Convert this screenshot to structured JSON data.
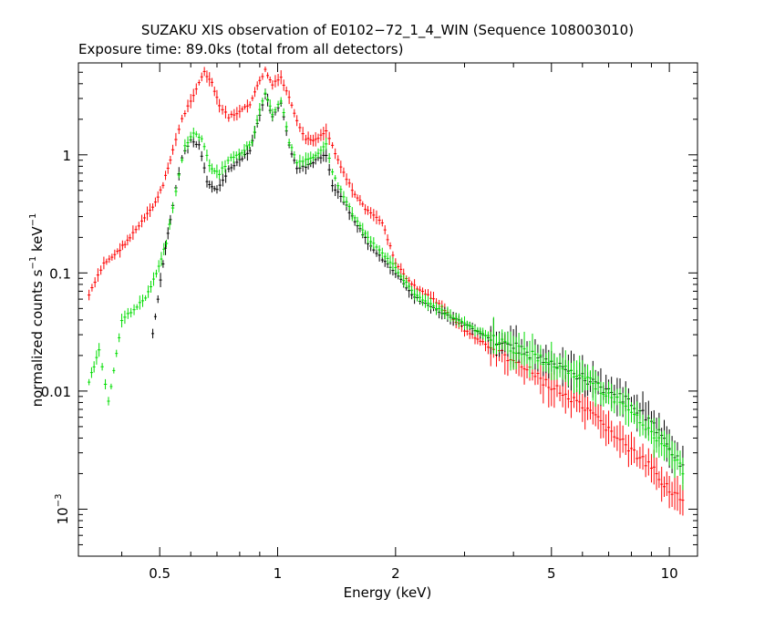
{
  "chart_data": {
    "type": "scatter",
    "title": "SUZAKU XIS observation of E0102−72_1_4_WIN (Sequence 108003010)",
    "subtitle": "Exposure time: 89.0ks (total from all detectors)",
    "xlabel": "Energy (keV)",
    "ylabel": "normalized counts s",
    "ylabel_sup1": "−1",
    "ylabel_mid": " keV",
    "ylabel_sup2": "−1",
    "x_scale": "log",
    "y_scale": "log",
    "xlim": [
      0.31,
      11.8
    ],
    "ylim": [
      0.0004,
      6
    ],
    "x_ticks": [
      {
        "value": 0.5,
        "label": "0.5"
      },
      {
        "value": 1,
        "label": "1"
      },
      {
        "value": 2,
        "label": "2"
      },
      {
        "value": 5,
        "label": "5"
      },
      {
        "value": 10,
        "label": "10"
      }
    ],
    "y_ticks": [
      {
        "value": 1,
        "label": "1"
      },
      {
        "value": 0.1,
        "label": "0.1"
      },
      {
        "value": 0.01,
        "label": "0.01"
      },
      {
        "value": 0.001,
        "label": "10",
        "sup": "−3"
      }
    ],
    "grid": false,
    "legend": "none",
    "series": [
      {
        "color": "#ff0000",
        "points": [
          [
            0.33,
            0.065
          ],
          [
            0.36,
            0.12
          ],
          [
            0.39,
            0.15
          ],
          [
            0.42,
            0.2
          ],
          [
            0.45,
            0.27
          ],
          [
            0.48,
            0.36
          ],
          [
            0.51,
            0.55
          ],
          [
            0.54,
            1.1
          ],
          [
            0.57,
            2.0
          ],
          [
            0.6,
            2.9
          ],
          [
            0.63,
            4.1
          ],
          [
            0.65,
            5.0
          ],
          [
            0.68,
            4.0
          ],
          [
            0.71,
            2.6
          ],
          [
            0.75,
            2.1
          ],
          [
            0.8,
            2.3
          ],
          [
            0.85,
            2.7
          ],
          [
            0.9,
            4.2
          ],
          [
            0.93,
            5.2
          ],
          [
            0.97,
            3.9
          ],
          [
            1.02,
            4.5
          ],
          [
            1.07,
            3.0
          ],
          [
            1.12,
            1.9
          ],
          [
            1.18,
            1.35
          ],
          [
            1.25,
            1.35
          ],
          [
            1.33,
            1.6
          ],
          [
            1.38,
            1.2
          ],
          [
            1.45,
            0.8
          ],
          [
            1.55,
            0.5
          ],
          [
            1.7,
            0.33
          ],
          [
            1.85,
            0.27
          ],
          [
            2.0,
            0.12
          ],
          [
            2.2,
            0.08
          ],
          [
            2.5,
            0.06
          ],
          [
            3.0,
            0.033
          ],
          [
            3.5,
            0.023
          ],
          [
            4.0,
            0.018
          ],
          [
            5.0,
            0.011
          ],
          [
            6.0,
            0.0072
          ],
          [
            7.0,
            0.0048
          ],
          [
            8.0,
            0.0031
          ],
          [
            9.0,
            0.0022
          ],
          [
            10.0,
            0.0015
          ],
          [
            11.0,
            0.0011
          ]
        ]
      },
      {
        "color": "#000000",
        "points": [
          [
            0.48,
            0.03
          ],
          [
            0.51,
            0.12
          ],
          [
            0.54,
            0.38
          ],
          [
            0.57,
            0.95
          ],
          [
            0.6,
            1.3
          ],
          [
            0.63,
            1.2
          ],
          [
            0.66,
            0.6
          ],
          [
            0.7,
            0.5
          ],
          [
            0.75,
            0.75
          ],
          [
            0.8,
            0.9
          ],
          [
            0.85,
            1.1
          ],
          [
            0.9,
            2.2
          ],
          [
            0.93,
            3.3
          ],
          [
            0.97,
            2.1
          ],
          [
            1.02,
            2.7
          ],
          [
            1.07,
            1.2
          ],
          [
            1.12,
            0.75
          ],
          [
            1.18,
            0.8
          ],
          [
            1.25,
            0.9
          ],
          [
            1.33,
            1.0
          ],
          [
            1.38,
            0.55
          ],
          [
            1.45,
            0.45
          ],
          [
            1.55,
            0.3
          ],
          [
            1.7,
            0.18
          ],
          [
            1.85,
            0.13
          ],
          [
            2.0,
            0.1
          ],
          [
            2.2,
            0.065
          ],
          [
            2.5,
            0.05
          ],
          [
            3.0,
            0.037
          ],
          [
            3.5,
            0.028
          ],
          [
            4.0,
            0.024
          ],
          [
            5.0,
            0.017
          ],
          [
            6.0,
            0.013
          ],
          [
            7.0,
            0.01
          ],
          [
            8.0,
            0.0078
          ],
          [
            9.0,
            0.0055
          ],
          [
            10.0,
            0.0033
          ],
          [
            11.0,
            0.0022
          ]
        ]
      },
      {
        "color": "#00dd00",
        "points": [
          [
            0.33,
            0.012
          ],
          [
            0.35,
            0.022
          ],
          [
            0.37,
            0.008
          ],
          [
            0.4,
            0.04
          ],
          [
            0.43,
            0.05
          ],
          [
            0.46,
            0.06
          ],
          [
            0.49,
            0.1
          ],
          [
            0.52,
            0.18
          ],
          [
            0.55,
            0.5
          ],
          [
            0.58,
            1.2
          ],
          [
            0.61,
            1.5
          ],
          [
            0.64,
            1.4
          ],
          [
            0.67,
            0.8
          ],
          [
            0.71,
            0.7
          ],
          [
            0.76,
            0.95
          ],
          [
            0.81,
            1.05
          ],
          [
            0.86,
            1.3
          ],
          [
            0.9,
            2.4
          ],
          [
            0.93,
            3.4
          ],
          [
            0.97,
            2.2
          ],
          [
            1.02,
            2.9
          ],
          [
            1.07,
            1.3
          ],
          [
            1.12,
            0.85
          ],
          [
            1.18,
            0.9
          ],
          [
            1.25,
            1.0
          ],
          [
            1.33,
            1.25
          ],
          [
            1.38,
            0.7
          ],
          [
            1.45,
            0.5
          ],
          [
            1.55,
            0.32
          ],
          [
            1.7,
            0.2
          ],
          [
            1.85,
            0.15
          ],
          [
            2.0,
            0.11
          ],
          [
            2.2,
            0.07
          ],
          [
            2.5,
            0.052
          ],
          [
            3.0,
            0.037
          ],
          [
            3.5,
            0.028
          ],
          [
            4.0,
            0.023
          ],
          [
            5.0,
            0.017
          ],
          [
            6.0,
            0.013
          ],
          [
            7.0,
            0.0095
          ],
          [
            8.0,
            0.0065
          ],
          [
            9.0,
            0.0045
          ],
          [
            10.0,
            0.003
          ],
          [
            11.0,
            0.002
          ]
        ]
      }
    ]
  }
}
